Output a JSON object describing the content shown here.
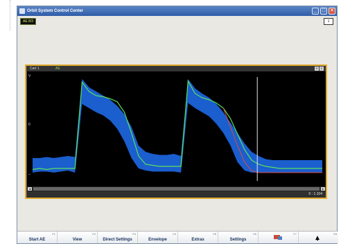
{
  "window": {
    "title": "Orbit System Control Center",
    "controls": [
      "minimize",
      "maximize",
      "close"
    ],
    "status_chip": "AE 8/3",
    "top_number": "1"
  },
  "panel": {
    "title": "Cart 1",
    "mode": "AE",
    "controls": [
      "plus-icon",
      "zoom-icon"
    ],
    "time_readout": "0 : 1.104",
    "scroll_left_button": "◄",
    "scroll_right_button": "►"
  },
  "chart_data": {
    "type": "line",
    "title": "",
    "xlabel": "",
    "ylabel": "",
    "x": [
      0,
      10,
      20,
      30,
      40,
      50,
      60,
      70,
      80,
      90,
      100,
      110,
      120,
      130,
      140,
      150,
      160,
      170,
      180,
      190,
      200,
      210,
      220,
      230,
      240,
      250,
      260,
      270,
      280,
      290,
      300,
      310,
      320,
      330,
      340,
      350,
      360,
      370,
      380,
      390,
      400,
      410
    ],
    "series": [
      {
        "role": "envelope-upper",
        "values": [
          0.22,
          0.22,
          0.23,
          0.22,
          0.23,
          0.24,
          0.23,
          0.98,
          0.9,
          0.86,
          0.82,
          0.78,
          0.72,
          0.64,
          0.52,
          0.34,
          0.28,
          0.26,
          0.25,
          0.25,
          0.26,
          0.24,
          0.98,
          0.89,
          0.84,
          0.8,
          0.74,
          0.66,
          0.56,
          0.46,
          0.36,
          0.28,
          0.24,
          0.21,
          0.2,
          0.2,
          0.2,
          0.2,
          0.2,
          0.2,
          0.2,
          0.2
        ]
      },
      {
        "role": "envelope-lower",
        "values": [
          0.08,
          0.09,
          0.09,
          0.08,
          0.09,
          0.1,
          0.08,
          0.74,
          0.7,
          0.66,
          0.63,
          0.58,
          0.5,
          0.38,
          0.22,
          0.12,
          0.1,
          0.09,
          0.09,
          0.09,
          0.09,
          0.08,
          0.75,
          0.7,
          0.66,
          0.62,
          0.55,
          0.46,
          0.34,
          0.18,
          0.1,
          0.08,
          0.08,
          0.08,
          0.08,
          0.08,
          0.08,
          0.08,
          0.08,
          0.08,
          0.08,
          0.08
        ]
      },
      {
        "role": "green-trace",
        "values": [
          0.11,
          0.12,
          0.11,
          0.12,
          0.12,
          0.12,
          0.12,
          0.95,
          0.86,
          0.82,
          0.81,
          0.79,
          0.76,
          0.66,
          0.46,
          0.24,
          0.16,
          0.15,
          0.14,
          0.14,
          0.14,
          0.14,
          0.96,
          0.84,
          0.8,
          0.78,
          0.75,
          0.7,
          0.6,
          0.45,
          0.3,
          0.2,
          0.16,
          0.14,
          0.13,
          0.12,
          0.12,
          0.12,
          0.12,
          0.12,
          0.12,
          0.12
        ]
      },
      {
        "role": "red-trace",
        "values": [
          null,
          null,
          null,
          null,
          null,
          null,
          null,
          null,
          null,
          null,
          null,
          null,
          null,
          null,
          null,
          null,
          null,
          null,
          null,
          null,
          null,
          null,
          null,
          null,
          null,
          null,
          null,
          0.7,
          0.52,
          0.34,
          0.18,
          0.1,
          0.08,
          0.08,
          0.08,
          0.08,
          0.08,
          0.08,
          0.08,
          0.08,
          0.08,
          0.08
        ]
      }
    ],
    "cursor_x": 318,
    "ylim": [
      0,
      1
    ],
    "grid": false,
    "colors": {
      "background": "#000000",
      "envelope": "#1c62d6",
      "green_trace": "#59e05d",
      "red_trace": "#e04a3f",
      "cursor": "#e8e8e8"
    }
  },
  "function_keys": [
    {
      "num": "F1",
      "label": "Start AE"
    },
    {
      "num": "F2",
      "label": "View"
    },
    {
      "num": "F3",
      "label": "Direct Settings"
    },
    {
      "num": "F4",
      "label": "Envelope"
    },
    {
      "num": "F5",
      "label": "Extras"
    },
    {
      "num": "F6",
      "label": "Settings"
    },
    {
      "num": "F7",
      "label": "",
      "icon": "monitor-icon"
    },
    {
      "num": "F8",
      "label": "",
      "icon": "exit-icon"
    }
  ],
  "colors": {
    "frame_accent": "#e0ad2f",
    "title_bar": "#2f5ca8",
    "fkey_text": "#16305a"
  }
}
